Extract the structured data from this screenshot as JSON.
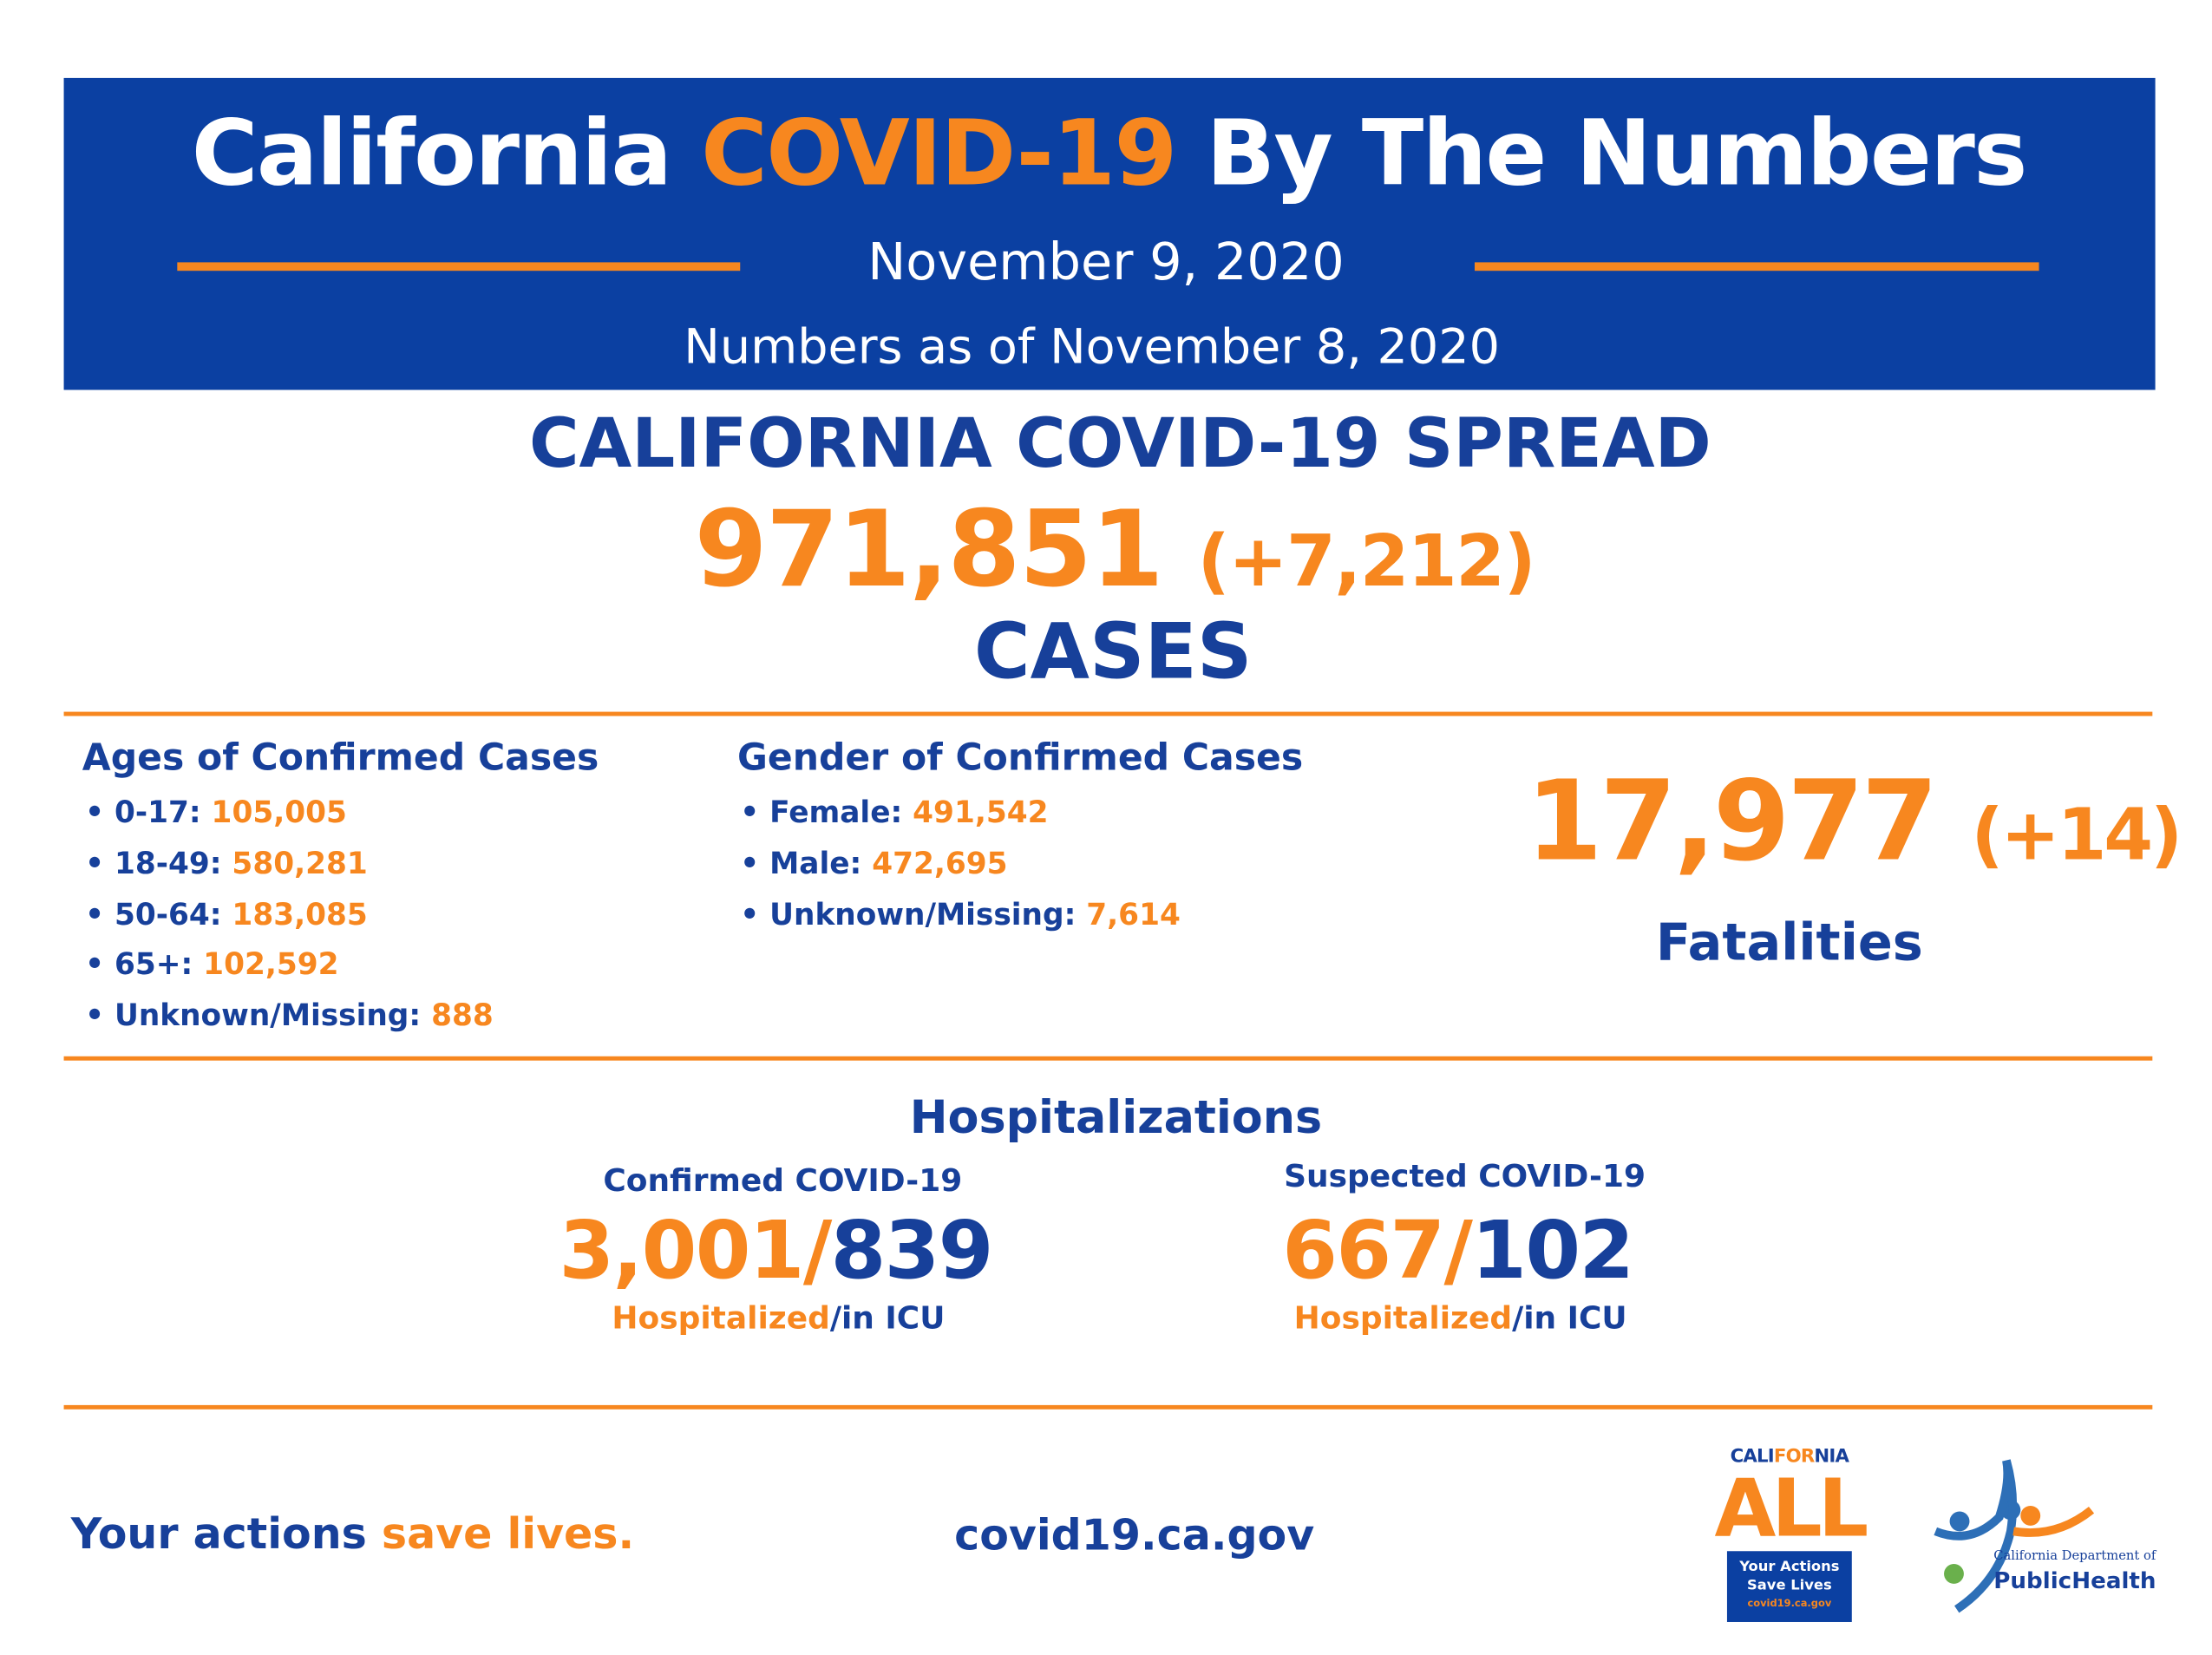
{
  "header": {
    "title_parts": [
      "California",
      "COVID-19",
      "By The Numbers"
    ],
    "date": "November 9, 2020",
    "as_of": "Numbers as of November 8, 2020"
  },
  "spread": {
    "title": "CALIFORNIA COVID-19 SPREAD",
    "cases": "971,851",
    "change": "(+7,212)",
    "label": "CASES"
  },
  "ages": {
    "title": "Ages of Confirmed Cases",
    "items": [
      {
        "label": "• 0-17:",
        "value": "105,005"
      },
      {
        "label": "• 18-49:",
        "value": "580,281"
      },
      {
        "label": "• 50-64:",
        "value": "183,085"
      },
      {
        "label": "• 65+:",
        "value": "102,592"
      },
      {
        "label": "• Unknown/Missing:",
        "value": "888"
      }
    ]
  },
  "gender": {
    "title": "Gender of Confirmed Cases",
    "items": [
      {
        "label": "• Female:",
        "value": "491,542"
      },
      {
        "label": "• Male:",
        "value": "472,695"
      },
      {
        "label": "• Unknown/Missing:",
        "value": "7,614"
      }
    ]
  },
  "fatalities": {
    "count": "17,977",
    "change": "(+14)",
    "label": "Fatalities"
  },
  "hospitalizations": {
    "title": "Hospitalizations",
    "groups": [
      {
        "title": "Confirmed COVID-19",
        "hospitalized": "3,001",
        "icu": "839",
        "hosp_label": "Hospitalized",
        "icu_label": "/in ICU"
      },
      {
        "title": "Suspected COVID-19",
        "hospitalized": "667",
        "icu": "102",
        "hosp_label": "Hospitalized",
        "icu_label": "/in ICU"
      }
    ]
  },
  "footer": {
    "slogan_start": "Your actions",
    "slogan_end": "save lives.",
    "url": "covid19.ca.gov"
  },
  "logos": {
    "ca_all": {
      "top_parts": [
        "CALI",
        "FOR",
        "NIA"
      ],
      "big": "ALL",
      "line1": "Your Actions",
      "line2": "Save Lives",
      "url": "covid19.ca.gov"
    },
    "cdph": {
      "line1": "California Department of",
      "line2": "PublicHealth"
    }
  }
}
